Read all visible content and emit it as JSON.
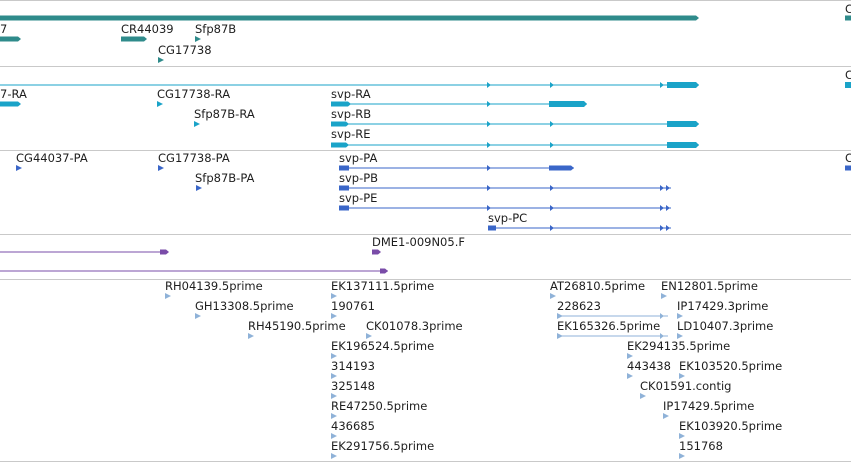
{
  "colors": {
    "gene": "#2f8b8b",
    "transcript": "#1aa3c8",
    "protein": "#3a66c8",
    "clone": "#7a4ca8",
    "est": "#8fb2d8",
    "separator": "#c9c9c9"
  },
  "tracks": {
    "genes": {
      "labels": [
        {
          "id": "g0",
          "text": "7"
        },
        {
          "id": "g1",
          "text": "CR44039"
        },
        {
          "id": "g2",
          "text": "Sfp87B"
        },
        {
          "id": "g3",
          "text": "CG17738"
        }
      ],
      "right_edge_label": "C"
    },
    "transcripts": {
      "labels": [
        {
          "id": "t0",
          "text": "7-RA"
        },
        {
          "id": "t1",
          "text": "CG17738-RA"
        },
        {
          "id": "t2",
          "text": "Sfp87B-RA"
        },
        {
          "id": "t3",
          "text": "svp-RA"
        },
        {
          "id": "t4",
          "text": "svp-RB"
        },
        {
          "id": "t5",
          "text": "svp-RE"
        }
      ],
      "right_edge_label": "C"
    },
    "proteins": {
      "labels": [
        {
          "id": "p0",
          "text": "CG44037-PA"
        },
        {
          "id": "p1",
          "text": "CG17738-PA"
        },
        {
          "id": "p2",
          "text": "Sfp87B-PA"
        },
        {
          "id": "p3",
          "text": "svp-PA"
        },
        {
          "id": "p4",
          "text": "svp-PB"
        },
        {
          "id": "p5",
          "text": "svp-PE"
        },
        {
          "id": "p6",
          "text": "svp-PC"
        }
      ],
      "right_edge_label": "C"
    },
    "clones": {
      "labels": [
        {
          "id": "c0",
          "text": "DME1-009N05.F"
        }
      ]
    },
    "ests": {
      "labels": [
        {
          "id": "e0",
          "text": "RH04139.5prime"
        },
        {
          "id": "e1",
          "text": "GH13308.5prime"
        },
        {
          "id": "e2",
          "text": "RH45190.5prime"
        },
        {
          "id": "e3",
          "text": "EK137111.5prime"
        },
        {
          "id": "e4",
          "text": "190761"
        },
        {
          "id": "e5",
          "text": "CK01078.3prime"
        },
        {
          "id": "e6",
          "text": "EK196524.5prime"
        },
        {
          "id": "e7",
          "text": "314193"
        },
        {
          "id": "e8",
          "text": "325148"
        },
        {
          "id": "e9",
          "text": "RE47250.5prime"
        },
        {
          "id": "e10",
          "text": "436685"
        },
        {
          "id": "e11",
          "text": "EK291756.5prime"
        },
        {
          "id": "e12",
          "text": "AT26810.5prime"
        },
        {
          "id": "e13",
          "text": "228623"
        },
        {
          "id": "e14",
          "text": "EK165326.5prime"
        },
        {
          "id": "e15",
          "text": "EN12801.5prime"
        },
        {
          "id": "e16",
          "text": "IP17429.3prime"
        },
        {
          "id": "e17",
          "text": "LD10407.3prime"
        },
        {
          "id": "e18",
          "text": "EK294135.5prime"
        },
        {
          "id": "e19",
          "text": "443438"
        },
        {
          "id": "e20",
          "text": "EK103520.5prime"
        },
        {
          "id": "e21",
          "text": "CK01591.contig"
        },
        {
          "id": "e22",
          "text": "IP17429.5prime"
        },
        {
          "id": "e23",
          "text": "EK103920.5prime"
        },
        {
          "id": "e24",
          "text": "151768"
        }
      ]
    }
  }
}
